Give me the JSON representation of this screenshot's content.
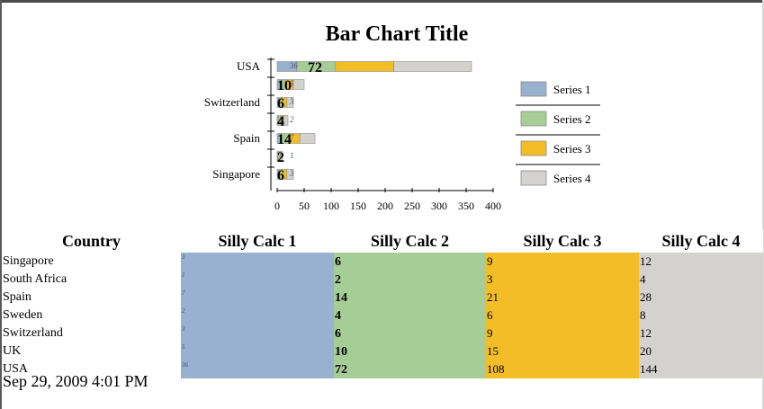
{
  "chart_data": {
    "type": "bar",
    "orientation": "horizontal",
    "stacked": true,
    "title": "Bar Chart Title",
    "xlabel": "",
    "ylabel": "",
    "xlim": [
      0,
      400
    ],
    "x_ticks": [
      0,
      50,
      100,
      150,
      200,
      250,
      300,
      350,
      400
    ],
    "categories": [
      "USA",
      "UK",
      "Switzerland",
      "Sweden",
      "Spain",
      "South Africa",
      "Singapore"
    ],
    "category_labels_shown": [
      "USA",
      "",
      "Switzerland",
      "",
      "Spain",
      "",
      "Singapore"
    ],
    "legend_position": "right",
    "series": [
      {
        "name": "Series 1",
        "color": "#98b1cf",
        "values": [
          36,
          5,
          3,
          2,
          7,
          1,
          3
        ]
      },
      {
        "name": "Series 2",
        "color": "#a6cd96",
        "values": [
          72,
          10,
          6,
          4,
          14,
          2,
          6
        ]
      },
      {
        "name": "Series 3",
        "color": "#f2bd26",
        "values": [
          108,
          15,
          9,
          6,
          21,
          3,
          9
        ]
      },
      {
        "name": "Series 4",
        "color": "#d3d2ce",
        "values": [
          144,
          20,
          12,
          8,
          28,
          4,
          12
        ]
      }
    ],
    "bar_labels": [
      "72",
      "10",
      "6",
      "4",
      "14",
      "2",
      "6"
    ],
    "bar_sublabels": [
      "36",
      "5",
      "3",
      "2",
      "7",
      "1",
      "3"
    ]
  },
  "table": {
    "headers": [
      "Country",
      "Silly Calc 1",
      "Silly Calc 2",
      "Silly Calc 3",
      "Silly Calc 4"
    ],
    "rows": [
      {
        "country": "Singapore",
        "calc1": "3",
        "calc2": "6",
        "calc3": "9",
        "calc4": "12"
      },
      {
        "country": "South Africa",
        "calc1": "1",
        "calc2": "2",
        "calc3": "3",
        "calc4": "4"
      },
      {
        "country": "Spain",
        "calc1": "7",
        "calc2": "14",
        "calc3": "21",
        "calc4": "28"
      },
      {
        "country": "Sweden",
        "calc1": "2",
        "calc2": "4",
        "calc3": "6",
        "calc4": "8"
      },
      {
        "country": "Switzerland",
        "calc1": "3",
        "calc2": "6",
        "calc3": "9",
        "calc4": "12"
      },
      {
        "country": "UK",
        "calc1": "5",
        "calc2": "10",
        "calc3": "15",
        "calc4": "20"
      },
      {
        "country": "USA",
        "calc1": "36",
        "calc2": "72",
        "calc3": "108",
        "calc4": "144"
      }
    ]
  },
  "timestamp": "Sep 29, 2009 4:01 PM"
}
